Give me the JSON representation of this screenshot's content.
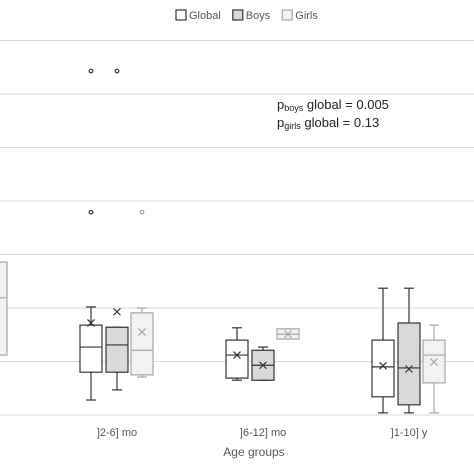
{
  "chart_data": {
    "type": "box",
    "x_label": "Age groups",
    "categories": [
      null,
      "]2-6] mo",
      "]6-12] mo",
      "]1-10] y"
    ],
    "ylim": [
      0,
      7.6
    ],
    "yticks": [
      0,
      1,
      2,
      3,
      4,
      5,
      6,
      7
    ],
    "show_tick_labels": false,
    "grid": true,
    "legend": "top",
    "series": [
      {
        "name": "Global",
        "color": "#ffffff",
        "stroke": "#333333",
        "values": [
          null,
          {
            "min": 0.28,
            "q1": 0.8,
            "median": 1.27,
            "q3": 1.68,
            "max": 2.02,
            "mean": 1.72,
            "outliers": [
              6.43,
              3.79
            ]
          },
          {
            "min": 0.65,
            "q1": 0.69,
            "median": 1.12,
            "q3": 1.4,
            "max": 1.63,
            "mean": 1.12,
            "outliers": []
          },
          {
            "min": 0.04,
            "q1": 0.34,
            "median": 0.9,
            "q3": 1.4,
            "max": 2.37,
            "mean": 0.92,
            "outliers": []
          }
        ]
      },
      {
        "name": "Boys",
        "color": "#d9d9d9",
        "stroke": "#333333",
        "values": [
          null,
          {
            "min": 0.47,
            "q1": 0.8,
            "median": 1.31,
            "q3": 1.64,
            "max": 1.64,
            "mean": 1.93,
            "outliers": [
              6.43
            ]
          },
          {
            "min": 0.65,
            "q1": 0.65,
            "median": 0.93,
            "q3": 1.21,
            "max": 1.27,
            "mean": 0.93,
            "outliers": []
          },
          {
            "min": 0.04,
            "q1": 0.19,
            "median": 0.88,
            "q3": 1.72,
            "max": 2.37,
            "mean": 0.86,
            "outliers": []
          }
        ]
      },
      {
        "name": "Girls",
        "color": "#f2f2f2",
        "stroke": "#a6a6a6",
        "values": [
          {
            "min": 1.12,
            "q1": 1.12,
            "median": 2.19,
            "q3": 2.86,
            "max": 2.86,
            "mean": null,
            "outliers": []
          },
          {
            "min": 0.71,
            "q1": 0.75,
            "median": 1.21,
            "q3": 1.91,
            "max": 2.0,
            "mean": 1.55,
            "outliers": [
              3.79
            ]
          },
          {
            "min": 1.42,
            "q1": 1.42,
            "median": 1.51,
            "q3": 1.61,
            "max": 1.61,
            "mean": 1.51,
            "outliers": []
          },
          {
            "min": 0.04,
            "q1": 0.6,
            "median": 1.12,
            "q3": 1.4,
            "max": 1.68,
            "mean": 0.99,
            "outliers": []
          }
        ]
      }
    ],
    "annotations": [
      {
        "prefix": "p",
        "sub": "boys",
        "rest": " global = 0.005"
      },
      {
        "prefix": "p",
        "sub": "girls",
        "rest": " global = 0.13"
      }
    ]
  }
}
